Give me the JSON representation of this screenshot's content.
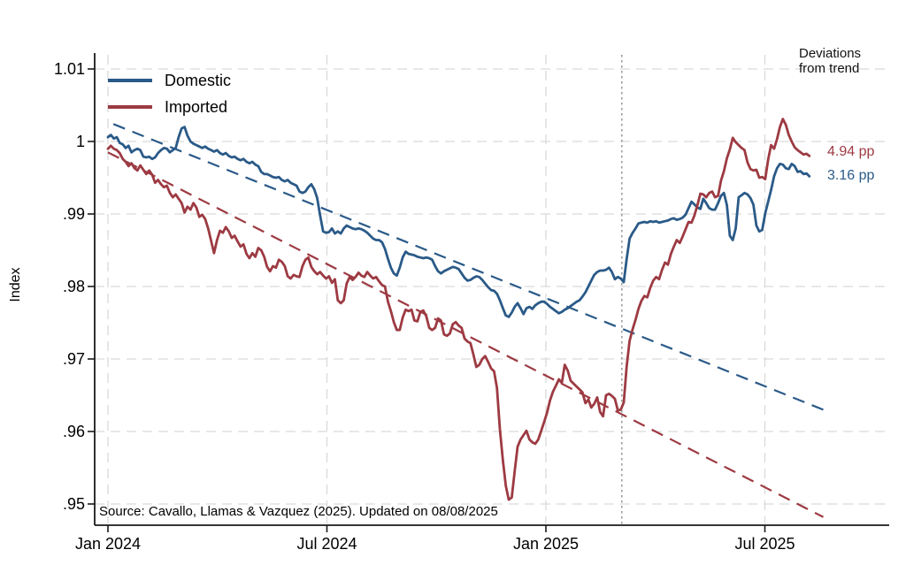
{
  "colors": {
    "domestic": "#2a5a88",
    "imported": "#9d3a42",
    "grid": "#d9d9d9",
    "event_line": "#9e9e9e",
    "axis": "#1a1a1a",
    "background": "#ffffff"
  },
  "chart_data": {
    "type": "line",
    "title": "",
    "xlabel": "",
    "ylabel": "Index",
    "x_unit": "months since Jan 2024",
    "xlim_months": [
      -0.36,
      21.4
    ],
    "ylim": [
      0.948,
      1.012
    ],
    "grid": true,
    "legend_position": "top-left-inside",
    "x_ticks": [
      {
        "label": "Jan 2024",
        "month": 0
      },
      {
        "label": "Jul 2024",
        "month": 6
      },
      {
        "label": "Jan 2025",
        "month": 12
      },
      {
        "label": "Jul 2025",
        "month": 18
      }
    ],
    "y_ticks": [
      {
        "label": ".95",
        "value": 0.95
      },
      {
        "label": ".96",
        "value": 0.96
      },
      {
        "label": ".97",
        "value": 0.97
      },
      {
        "label": ".98",
        "value": 0.98
      },
      {
        "label": ".99",
        "value": 0.99
      },
      {
        "label": "1",
        "value": 1.0
      },
      {
        "label": "1.01",
        "value": 1.01
      }
    ],
    "legend": {
      "items": [
        {
          "label": "Domestic",
          "color": "#2a5a88"
        },
        {
          "label": "Imported",
          "color": "#9d3a42"
        }
      ]
    },
    "event_line_month": 14.08,
    "series": [
      {
        "name": "Domestic",
        "color": "#2a5a88",
        "x_start_month": 0,
        "x_end_month": 19.22,
        "values": [
          1.0006,
          1.0009,
          1.0004,
          1.0006,
          0.9998,
          0.9996,
          0.9991,
          0.9994,
          0.9985,
          0.9988,
          0.999,
          0.9988,
          0.9979,
          0.9978,
          0.9979,
          0.9976,
          0.9978,
          0.9984,
          0.9988,
          0.9991,
          0.999,
          0.9985,
          0.9988,
          0.9991,
          1.0006,
          1.0018,
          1.002,
          1.0008,
          1.0,
          0.9997,
          0.9995,
          0.9993,
          0.9991,
          0.9993,
          0.999,
          0.9988,
          0.9986,
          0.9988,
          0.9984,
          0.9982,
          0.9984,
          0.998,
          0.9978,
          0.9979,
          0.9976,
          0.9974,
          0.9976,
          0.9972,
          0.997,
          0.9972,
          0.9968,
          0.9966,
          0.9958,
          0.9955,
          0.9955,
          0.9953,
          0.9951,
          0.995,
          0.9951,
          0.9947,
          0.9945,
          0.9947,
          0.9943,
          0.9941,
          0.9939,
          0.9931,
          0.9929,
          0.9931,
          0.9937,
          0.9941,
          0.9934,
          0.9922,
          0.9898,
          0.9876,
          0.9874,
          0.9875,
          0.988,
          0.9873,
          0.9876,
          0.9873,
          0.988,
          0.9884,
          0.9882,
          0.988,
          0.9879,
          0.988,
          0.9879,
          0.9877,
          0.9874,
          0.987,
          0.9866,
          0.9864,
          0.9864,
          0.9861,
          0.9852,
          0.9838,
          0.9826,
          0.9818,
          0.9815,
          0.9826,
          0.984,
          0.9848,
          0.9845,
          0.9844,
          0.9843,
          0.9841,
          0.984,
          0.9839,
          0.984,
          0.9839,
          0.9837,
          0.9828,
          0.9821,
          0.9818,
          0.9821,
          0.9823,
          0.9825,
          0.9827,
          0.9826,
          0.9824,
          0.9818,
          0.9812,
          0.9808,
          0.9809,
          0.9812,
          0.9814,
          0.9813,
          0.9809,
          0.9804,
          0.9799,
          0.9795,
          0.9794,
          0.979,
          0.9781,
          0.977,
          0.976,
          0.9758,
          0.9764,
          0.9772,
          0.9777,
          0.977,
          0.9762,
          0.977,
          0.9772,
          0.9769,
          0.9774,
          0.9777,
          0.9779,
          0.9779,
          0.9776,
          0.9772,
          0.9769,
          0.9766,
          0.9763,
          0.9765,
          0.9768,
          0.977,
          0.9773,
          0.9776,
          0.9779,
          0.9781,
          0.9786,
          0.9792,
          0.98,
          0.9808,
          0.9816,
          0.982,
          0.9822,
          0.9822,
          0.9823,
          0.9826,
          0.982,
          0.981,
          0.9813,
          0.9811,
          0.9806,
          0.9838,
          0.9866,
          0.9874,
          0.988,
          0.9887,
          0.9888,
          0.9889,
          0.9888,
          0.989,
          0.9889,
          0.989,
          0.9888,
          0.9889,
          0.989,
          0.9891,
          0.9893,
          0.9894,
          0.9892,
          0.9893,
          0.9895,
          0.9899,
          0.9908,
          0.9917,
          0.9913,
          0.9909,
          0.9907,
          0.9921,
          0.9915,
          0.9908,
          0.9906,
          0.9906,
          0.9915,
          0.9925,
          0.9929,
          0.9912,
          0.987,
          0.9864,
          0.988,
          0.9923,
          0.9926,
          0.9929,
          0.9927,
          0.9922,
          0.9913,
          0.9884,
          0.9876,
          0.9878,
          0.9901,
          0.9917,
          0.9933,
          0.9952,
          0.9963,
          0.9969,
          0.9968,
          0.9963,
          0.9962,
          0.9969,
          0.9966,
          0.9958,
          0.9959,
          0.9955,
          0.9956,
          0.9952
        ]
      },
      {
        "name": "Imported",
        "color": "#9d3a42",
        "x_start_month": 0,
        "x_end_month": 19.22,
        "values": [
          0.999,
          0.9994,
          0.999,
          0.9988,
          0.9984,
          0.9976,
          0.9972,
          0.9966,
          0.997,
          0.9963,
          0.996,
          0.9967,
          0.9961,
          0.9955,
          0.996,
          0.9954,
          0.9943,
          0.9947,
          0.9941,
          0.9937,
          0.9939,
          0.9929,
          0.9923,
          0.9927,
          0.9921,
          0.9915,
          0.9902,
          0.991,
          0.9906,
          0.9915,
          0.9909,
          0.9896,
          0.9899,
          0.9893,
          0.988,
          0.9863,
          0.9846,
          0.9864,
          0.9877,
          0.9874,
          0.9882,
          0.9876,
          0.9867,
          0.987,
          0.9862,
          0.9855,
          0.9858,
          0.9845,
          0.9839,
          0.9846,
          0.9841,
          0.9853,
          0.985,
          0.9841,
          0.9827,
          0.9821,
          0.9828,
          0.9826,
          0.9837,
          0.9834,
          0.9828,
          0.9814,
          0.9811,
          0.9816,
          0.9814,
          0.9813,
          0.9828,
          0.9837,
          0.984,
          0.9827,
          0.9821,
          0.9817,
          0.982,
          0.9815,
          0.9811,
          0.9814,
          0.9805,
          0.981,
          0.9781,
          0.9777,
          0.9781,
          0.9804,
          0.9813,
          0.9809,
          0.9813,
          0.9819,
          0.9815,
          0.9813,
          0.982,
          0.9815,
          0.9811,
          0.9813,
          0.9807,
          0.9802,
          0.98,
          0.9779,
          0.9766,
          0.9751,
          0.974,
          0.974,
          0.9757,
          0.9768,
          0.9766,
          0.9768,
          0.9753,
          0.9752,
          0.9765,
          0.9767,
          0.9759,
          0.9743,
          0.974,
          0.9743,
          0.9756,
          0.9753,
          0.9734,
          0.9732,
          0.9735,
          0.9748,
          0.9751,
          0.9746,
          0.9743,
          0.9728,
          0.9724,
          0.9722,
          0.9706,
          0.9689,
          0.9692,
          0.97,
          0.9704,
          0.9696,
          0.9687,
          0.9683,
          0.966,
          0.9603,
          0.956,
          0.9525,
          0.9506,
          0.9509,
          0.9545,
          0.9579,
          0.9589,
          0.9595,
          0.9601,
          0.9589,
          0.9585,
          0.9583,
          0.9589,
          0.9601,
          0.9613,
          0.9626,
          0.9643,
          0.9655,
          0.9663,
          0.9672,
          0.9667,
          0.9692,
          0.9684,
          0.967,
          0.9666,
          0.9662,
          0.9658,
          0.9654,
          0.9639,
          0.9644,
          0.9633,
          0.9638,
          0.9647,
          0.9627,
          0.9621,
          0.965,
          0.9652,
          0.9649,
          0.9645,
          0.9629,
          0.963,
          0.964,
          0.969,
          0.9725,
          0.9741,
          0.9754,
          0.9769,
          0.978,
          0.9787,
          0.9785,
          0.9798,
          0.9808,
          0.9813,
          0.981,
          0.9823,
          0.9833,
          0.983,
          0.9845,
          0.9855,
          0.9864,
          0.986,
          0.9869,
          0.9879,
          0.9889,
          0.9888,
          0.9898,
          0.9912,
          0.9928,
          0.9927,
          0.9923,
          0.9929,
          0.9931,
          0.9923,
          0.9925,
          0.9946,
          0.9959,
          0.9977,
          0.9989,
          1.0005,
          0.9999,
          0.9995,
          0.9991,
          0.9988,
          0.9971,
          0.9962,
          0.996,
          0.9961,
          0.995,
          0.9951,
          0.9948,
          0.9975,
          0.9995,
          0.999,
          1.0003,
          1.002,
          1.0031,
          1.0023,
          1.0009,
          1.0,
          0.9992,
          0.9988,
          0.9985,
          0.9982,
          0.9983,
          0.998
        ]
      }
    ],
    "trend_lines": [
      {
        "name": "Domestic trend",
        "color": "#2a5a88",
        "x_months": [
          0.15,
          19.6
        ],
        "values": [
          1.0024,
          0.963
        ]
      },
      {
        "name": "Imported trend",
        "color": "#9d3a42",
        "x_months": [
          0.0,
          19.6
        ],
        "values": [
          0.9985,
          0.9482
        ]
      }
    ],
    "annotations": {
      "deviations_title_line1": "Deviations",
      "deviations_title_line2": "from trend",
      "imported_deviation": "4.94 pp",
      "domestic_deviation": "3.16 pp"
    },
    "source_note": "Source: Cavallo, Llamas & Vazquez (2025). Updated on 08/08/2025"
  }
}
